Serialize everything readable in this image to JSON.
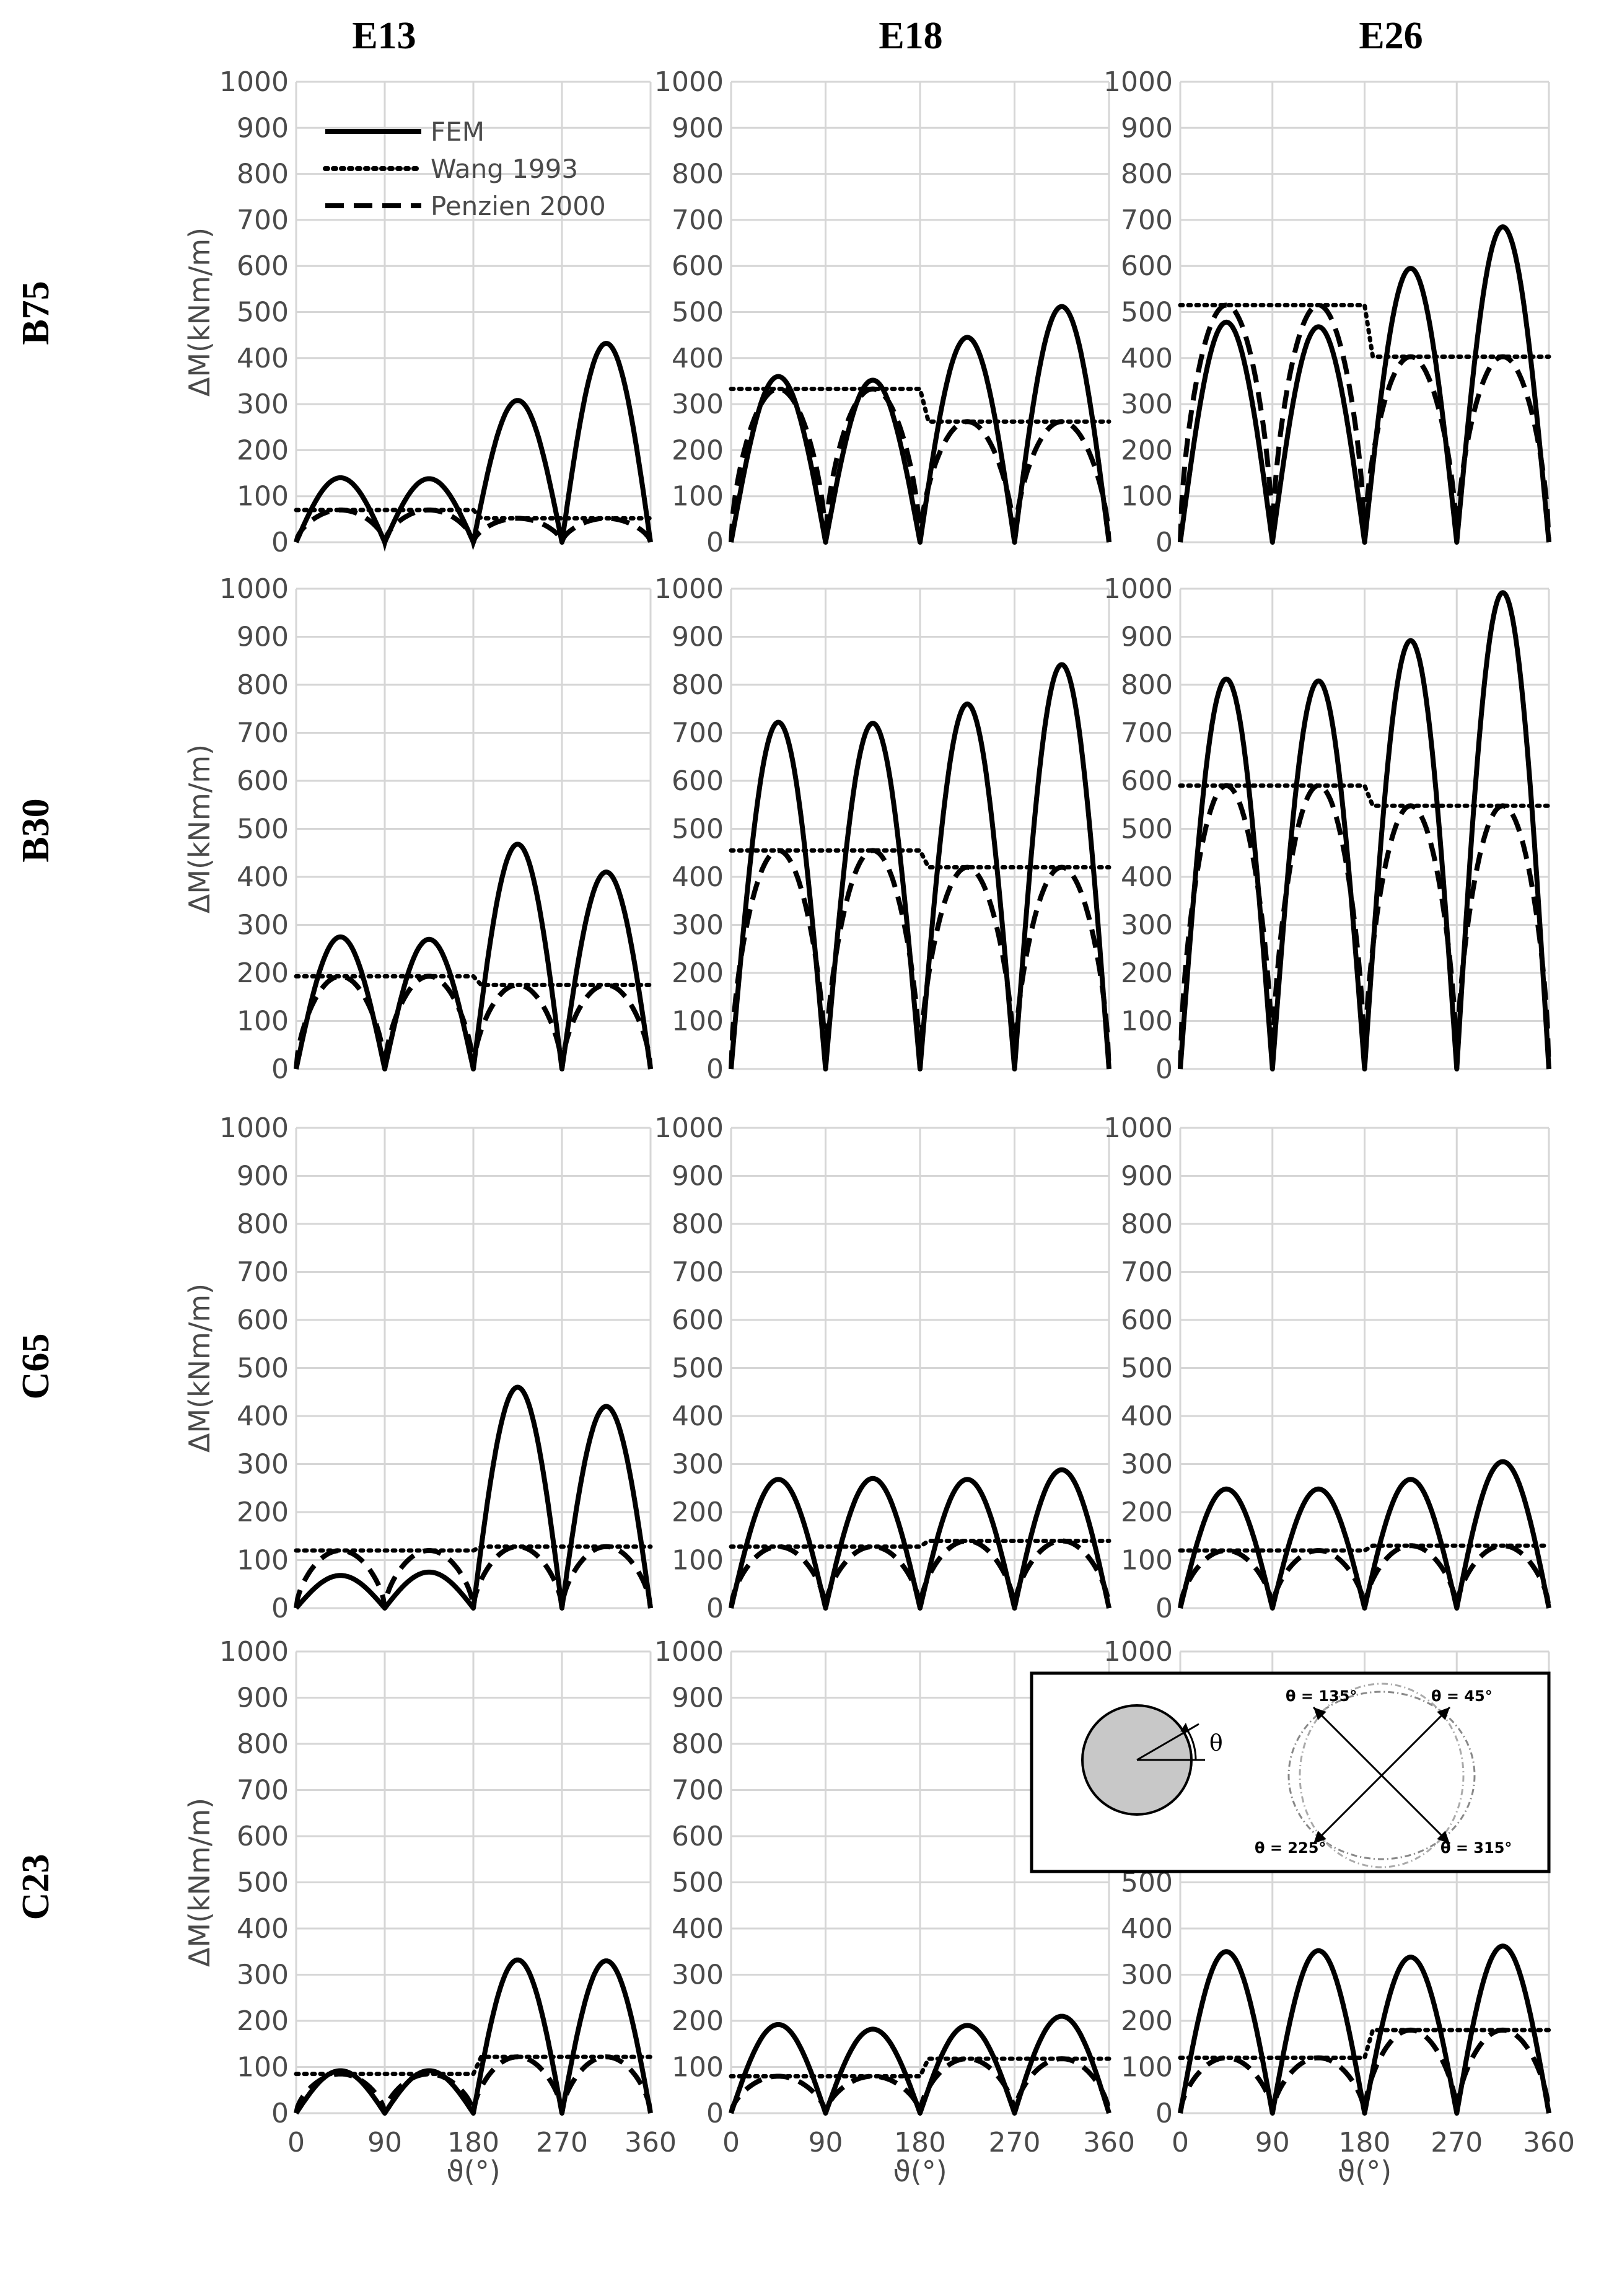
{
  "columns": [
    "E13",
    "E18",
    "E26"
  ],
  "rows": [
    "B75",
    "B30",
    "C65",
    "C23"
  ],
  "legend": {
    "fem": "FEM",
    "wang": "Wang 1993",
    "penzien": "Penzien 2000"
  },
  "inset": {
    "theta_symbol": "θ",
    "labels": [
      "θ = 135°",
      "θ = 45°",
      "θ = 225°",
      "θ = 315°"
    ]
  },
  "chart_data": {
    "type": "line",
    "ylabel": "ΔM(kNm/m)",
    "xlabel": "ϑ(°)",
    "xlim": [
      0,
      360
    ],
    "ylim": [
      0,
      1000
    ],
    "xticks": [
      0,
      90,
      180,
      270,
      360
    ],
    "yticks": [
      0,
      100,
      200,
      300,
      400,
      500,
      600,
      700,
      800,
      900,
      1000
    ],
    "grid": true,
    "legend_position": "top-left",
    "panels": [
      {
        "row": "B75",
        "col": "E13",
        "fem_peaks": [
          140,
          138,
          308,
          432
        ],
        "wang_levels": [
          70,
          52
        ],
        "penzien_peaks": [
          70,
          70,
          52,
          52
        ]
      },
      {
        "row": "B75",
        "col": "E18",
        "fem_peaks": [
          360,
          352,
          445,
          512
        ],
        "wang_levels": [
          333,
          262
        ],
        "penzien_peaks": [
          333,
          333,
          262,
          262
        ]
      },
      {
        "row": "B75",
        "col": "E26",
        "fem_peaks": [
          478,
          468,
          595,
          685
        ],
        "wang_levels": [
          515,
          403
        ],
        "penzien_peaks": [
          515,
          515,
          403,
          403
        ]
      },
      {
        "row": "B30",
        "col": "E13",
        "fem_peaks": [
          275,
          270,
          468,
          410
        ],
        "wang_levels": [
          193,
          175
        ],
        "penzien_peaks": [
          193,
          193,
          175,
          175
        ]
      },
      {
        "row": "B30",
        "col": "E18",
        "fem_peaks": [
          722,
          720,
          760,
          842
        ],
        "wang_levels": [
          455,
          420
        ],
        "penzien_peaks": [
          455,
          455,
          420,
          420
        ]
      },
      {
        "row": "B30",
        "col": "E26",
        "fem_peaks": [
          812,
          808,
          892,
          992
        ],
        "wang_levels": [
          590,
          548
        ],
        "penzien_peaks": [
          590,
          590,
          548,
          548
        ]
      },
      {
        "row": "C65",
        "col": "E13",
        "fem_peaks": [
          68,
          75,
          460,
          420
        ],
        "wang_levels": [
          120,
          128
        ],
        "penzien_peaks": [
          120,
          120,
          128,
          128
        ]
      },
      {
        "row": "C65",
        "col": "E18",
        "fem_peaks": [
          268,
          270,
          268,
          288
        ],
        "wang_levels": [
          128,
          140
        ],
        "penzien_peaks": [
          128,
          128,
          140,
          140
        ]
      },
      {
        "row": "C65",
        "col": "E26",
        "fem_peaks": [
          248,
          248,
          268,
          305
        ],
        "wang_levels": [
          120,
          130
        ],
        "penzien_peaks": [
          120,
          120,
          130,
          130
        ]
      },
      {
        "row": "C23",
        "col": "E13",
        "fem_peaks": [
          92,
          92,
          332,
          330
        ],
        "wang_levels": [
          85,
          122
        ],
        "penzien_peaks": [
          85,
          85,
          122,
          122
        ]
      },
      {
        "row": "C23",
        "col": "E18",
        "fem_peaks": [
          192,
          182,
          190,
          210
        ],
        "wang_levels": [
          80,
          118
        ],
        "penzien_peaks": [
          80,
          80,
          118,
          118
        ]
      },
      {
        "row": "C23",
        "col": "E26",
        "fem_peaks": [
          350,
          352,
          338,
          362
        ],
        "wang_levels": [
          120,
          180
        ],
        "penzien_peaks": [
          120,
          120,
          180,
          180
        ]
      }
    ]
  }
}
